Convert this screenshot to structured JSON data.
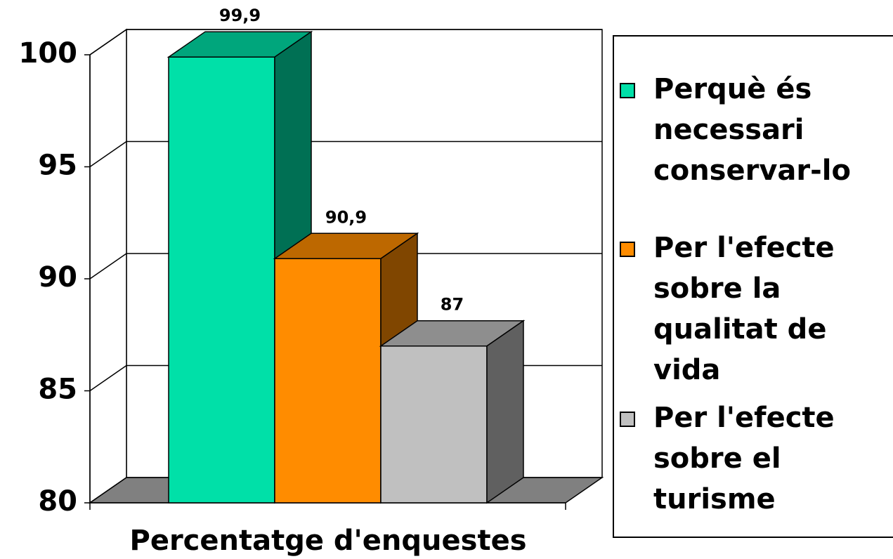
{
  "chart_data": {
    "type": "bar",
    "x_label": "Percentatge d'enquestes",
    "categories": [
      "Percentatge d'enquestes"
    ],
    "series": [
      {
        "name": "Perquè és necessari conservar-lo",
        "color": "#00e0a8",
        "values": [
          99.9
        ],
        "value_labels": [
          "99,9"
        ]
      },
      {
        "name": "Per l'efecte sobre la qualitat de vida",
        "color": "#ff8c00",
        "values": [
          90.9
        ],
        "value_labels": [
          "90,9"
        ]
      },
      {
        "name": "Per l'efecte sobre el turisme",
        "color": "#c0c0c0",
        "values": [
          87
        ],
        "value_labels": [
          "87"
        ]
      }
    ],
    "ylim": [
      80,
      100
    ],
    "yticks": [
      80,
      85,
      90,
      95,
      100
    ],
    "grid": true,
    "legend": "right"
  }
}
